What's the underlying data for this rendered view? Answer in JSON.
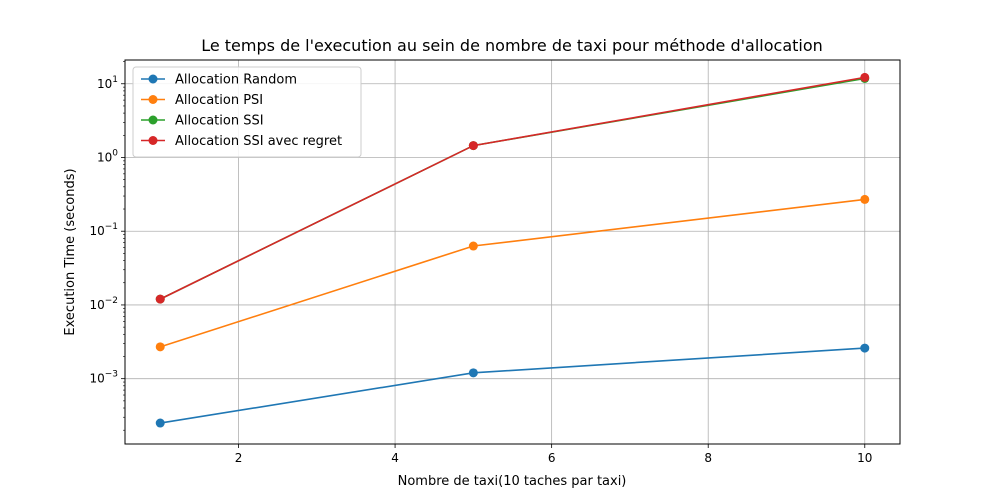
{
  "chart_data": {
    "type": "line",
    "title": "Le temps de l'execution au sein de nombre de taxi pour méthode d'allocation",
    "xlabel": "Nombre de taxi(10 taches par taxi)",
    "ylabel": "Execution Time (seconds)",
    "x": [
      1,
      5,
      10
    ],
    "xlim": [
      0.55,
      10.45
    ],
    "ylim": [
      0.00013,
      21
    ],
    "y_scale": "log",
    "grid": true,
    "legend_position": "top-left",
    "x_ticks": [
      2,
      4,
      6,
      8,
      10
    ],
    "y_ticks": [
      {
        "value": 0.001,
        "base": "10",
        "exp": "−3"
      },
      {
        "value": 0.01,
        "base": "10",
        "exp": "−2"
      },
      {
        "value": 0.1,
        "base": "10",
        "exp": "−1"
      },
      {
        "value": 1,
        "base": "10",
        "exp": "0"
      },
      {
        "value": 10,
        "base": "10",
        "exp": "1"
      }
    ],
    "series": [
      {
        "name": "Allocation Random",
        "color": "#1f77b4",
        "values": [
          0.00025,
          0.0012,
          0.0026
        ]
      },
      {
        "name": "Allocation PSI",
        "color": "#ff7f0e",
        "values": [
          0.0027,
          0.063,
          0.27
        ]
      },
      {
        "name": "Allocation SSI",
        "color": "#2ca02c",
        "values": [
          0.012,
          1.45,
          11.8
        ]
      },
      {
        "name": "Allocation SSI avec regret",
        "color": "#d62728",
        "values": [
          0.012,
          1.45,
          12.2
        ]
      }
    ]
  }
}
